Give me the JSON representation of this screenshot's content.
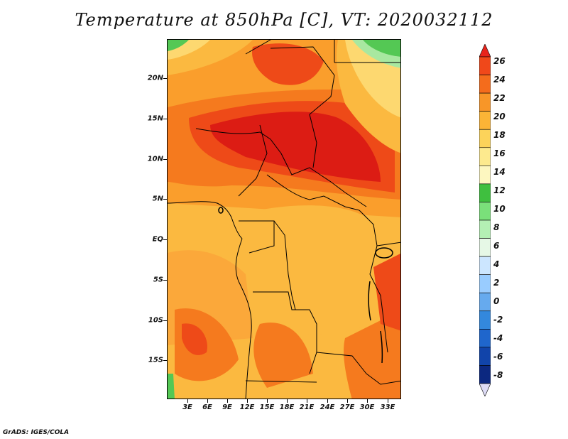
{
  "title": "Temperature at 850hPa [C], VT: 2020032112",
  "credit": "GrADS: IGES/COLA",
  "lat_labels": [
    "20N",
    "15N",
    "10N",
    "5N",
    "EQ",
    "5S",
    "10S",
    "15S"
  ],
  "lon_labels": [
    "3E",
    "6E",
    "9E",
    "12E",
    "15E",
    "18E",
    "21E",
    "24E",
    "27E",
    "30E",
    "33E"
  ],
  "colorbar": {
    "labels": [
      "26",
      "24",
      "22",
      "20",
      "18",
      "16",
      "14",
      "12",
      "10",
      "8",
      "6",
      "4",
      "2",
      "0",
      "-2",
      "-4",
      "-6",
      "-8"
    ],
    "colors": [
      "#e8241c",
      "#f0481a",
      "#f46c1c",
      "#f89628",
      "#fbb436",
      "#fcd35a",
      "#fdea8e",
      "#fdf7c0",
      "#3fbf3f",
      "#7ae07a",
      "#b4f0b4",
      "#e6f8e6",
      "#cce6ff",
      "#99ccff",
      "#66aaee",
      "#3388dd",
      "#1f66cc",
      "#1144aa",
      "#0c2880",
      "#dedcf6"
    ]
  },
  "map_colors": {
    "hot": "#dc1c14",
    "warm_red": "#ee4a18",
    "orange": "#f57a1e",
    "light_orange": "#fa9e2c",
    "amber": "#fbb940",
    "yellow": "#fdd870",
    "pale": "#fef0b4",
    "green": "#54c854",
    "light_green": "#a8e8a0",
    "border": "#000000"
  }
}
